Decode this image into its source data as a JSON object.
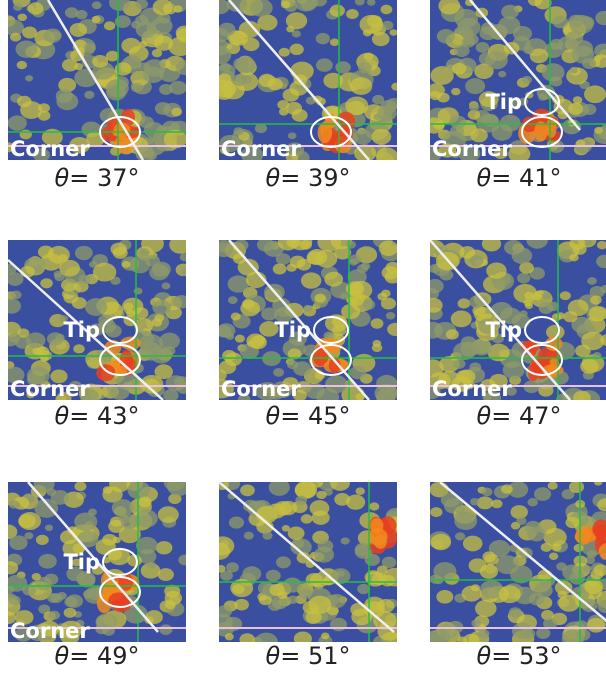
{
  "panels": [
    {
      "caption": {
        "symbol": "θ",
        "text": "= 37°"
      },
      "labels": {
        "corner": "Corner"
      }
    },
    {
      "caption": {
        "symbol": "θ",
        "text": "= 39°"
      },
      "labels": {
        "corner": "Corner"
      }
    },
    {
      "caption": {
        "symbol": "θ",
        "text": "= 41°"
      },
      "labels": {
        "tip": "Tip",
        "corner": "Corner"
      }
    },
    {
      "caption": {
        "symbol": "θ",
        "text": "= 43°"
      },
      "labels": {
        "tip": "Tip",
        "corner": "Corner"
      }
    },
    {
      "caption": {
        "symbol": "θ",
        "text": "= 45°"
      },
      "labels": {
        "tip": "Tip",
        "corner": "Corner"
      }
    },
    {
      "caption": {
        "symbol": "θ",
        "text": "= 47°"
      },
      "labels": {
        "tip": "Tip",
        "corner": "Corner"
      }
    },
    {
      "caption": {
        "symbol": "θ",
        "text": "= 49°"
      },
      "labels": {
        "tip": "Tip",
        "corner": "Corner"
      }
    },
    {
      "caption": {
        "symbol": "θ",
        "text": "= 51°"
      },
      "labels": {}
    },
    {
      "caption": {
        "symbol": "θ",
        "text": "= 53°"
      },
      "labels": {}
    }
  ]
}
